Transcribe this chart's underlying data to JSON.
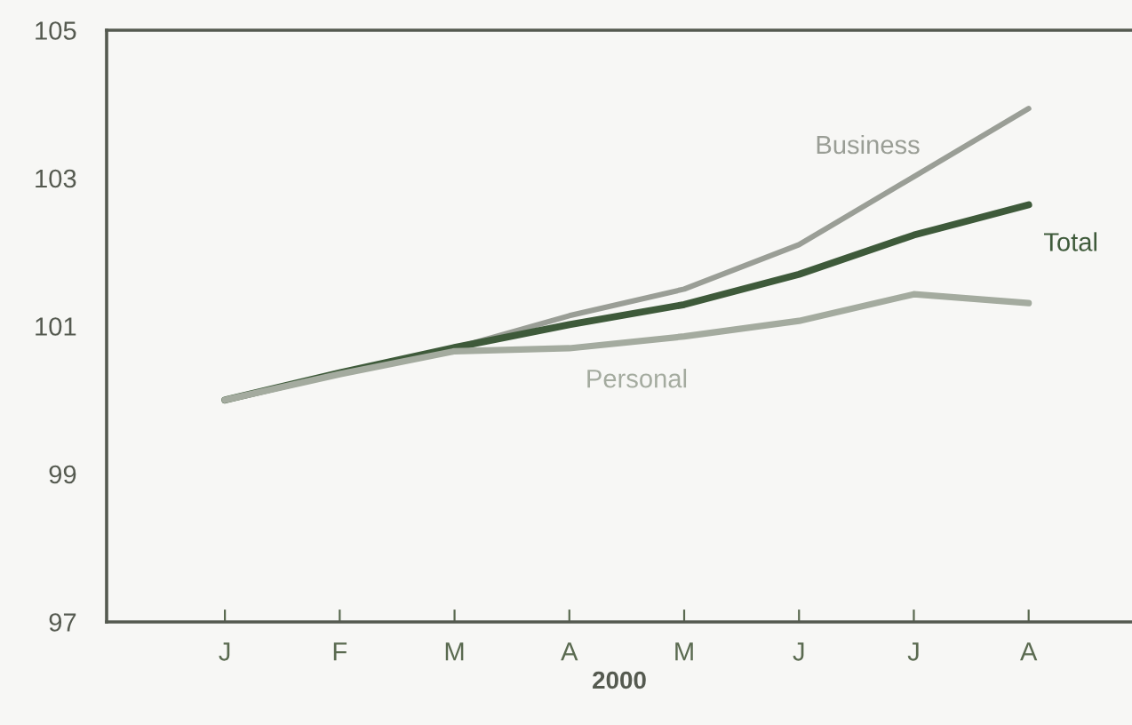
{
  "chart_data": {
    "type": "line",
    "categories": [
      "J",
      "F",
      "M",
      "A",
      "M",
      "J",
      "J",
      "A"
    ],
    "xlabel": "2000",
    "series": [
      {
        "name": "Business",
        "color": "#9a9e96",
        "values": [
          100.0,
          100.37,
          100.7,
          101.14,
          101.5,
          102.1,
          103.02,
          103.94
        ]
      },
      {
        "name": "Total",
        "color": "#3e5a3a",
        "values": [
          100.0,
          100.37,
          100.71,
          101.02,
          101.29,
          101.7,
          102.23,
          102.64
        ]
      },
      {
        "name": "Personal",
        "color": "#a4ab9f",
        "values": [
          100.0,
          100.35,
          100.66,
          100.7,
          100.86,
          101.07,
          101.43,
          101.31
        ]
      }
    ],
    "ylim": [
      97,
      105
    ],
    "yticks": [
      97,
      99,
      101,
      103,
      105
    ],
    "grid": false,
    "legend": false,
    "marker": "none",
    "line_style": "solid"
  }
}
